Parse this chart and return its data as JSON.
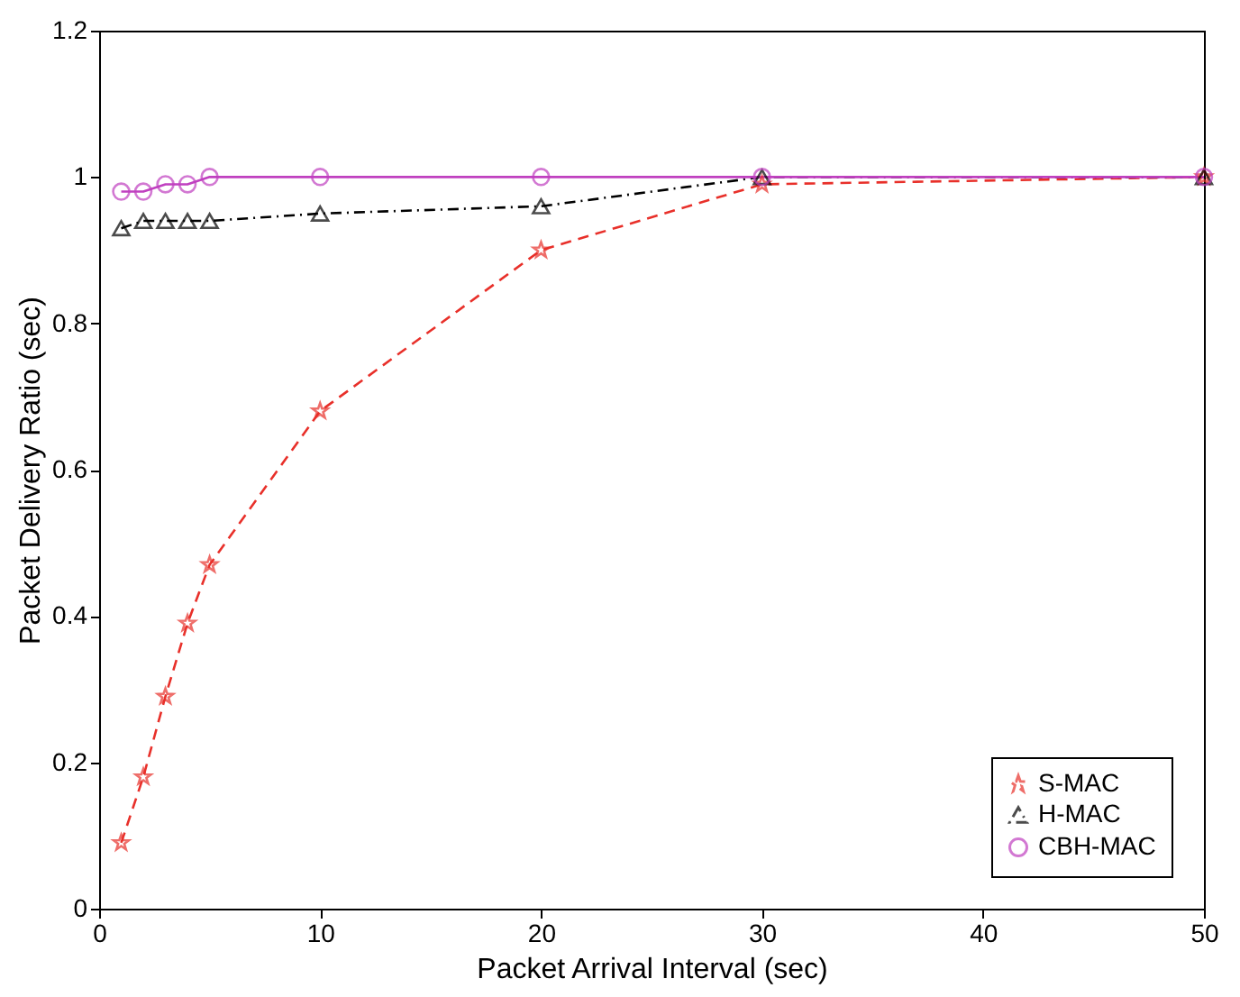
{
  "chart_data": {
    "type": "line",
    "xlabel": "Packet Arrival Interval (sec)",
    "ylabel": "Packet Delivery Ratio (sec)",
    "xlim": [
      0,
      50
    ],
    "xticks": [
      0,
      10,
      20,
      30,
      40,
      50
    ],
    "ylim": [
      0,
      1.2
    ],
    "yticks": [
      0,
      0.2,
      0.4,
      0.6,
      0.8,
      1,
      1.2
    ],
    "grid": false,
    "legend": "bottom right",
    "x": [
      1,
      2,
      3,
      4,
      5,
      10,
      20,
      30,
      50
    ],
    "series": [
      {
        "name": "S-MAC",
        "color": "#e8302a",
        "marker": "star",
        "line_style": "dashed",
        "values": [
          0.09,
          0.18,
          0.29,
          0.39,
          0.47,
          0.68,
          0.9,
          0.99,
          1.0
        ]
      },
      {
        "name": "H-MAC",
        "color": "#000000",
        "marker": "triangle",
        "line_style": "dashdot",
        "values": [
          0.93,
          0.94,
          0.94,
          0.94,
          0.94,
          0.95,
          0.96,
          1.0,
          1.0
        ]
      },
      {
        "name": "CBH-MAC",
        "color": "#c040c0",
        "marker": "circle",
        "line_style": "solid",
        "values": [
          0.98,
          0.98,
          0.99,
          0.99,
          1.0,
          1.0,
          1.0,
          1.0,
          1.0
        ]
      }
    ]
  }
}
